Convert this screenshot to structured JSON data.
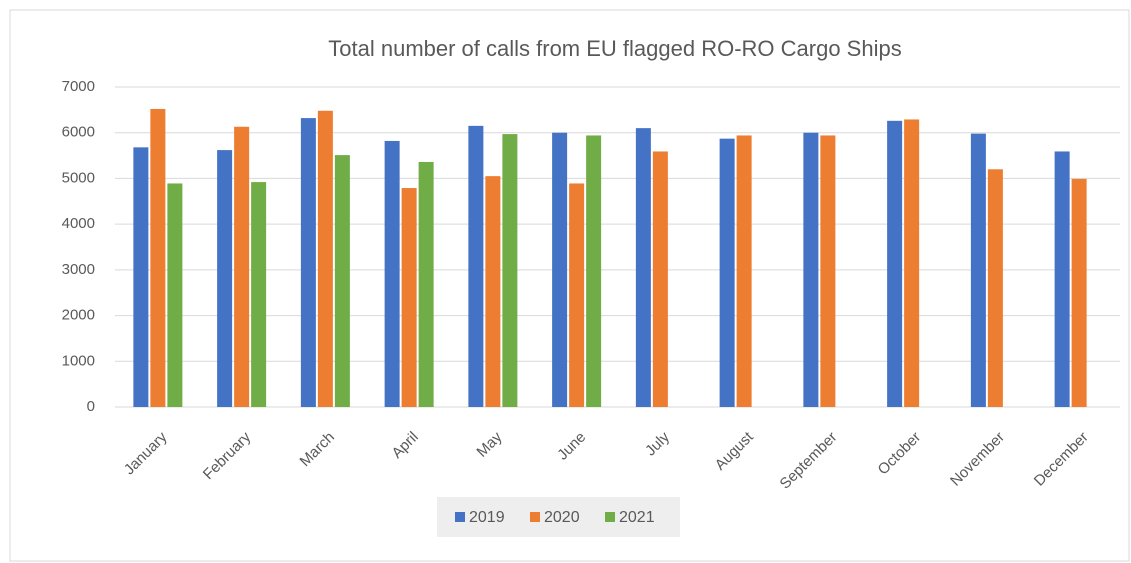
{
  "chart_data": {
    "type": "bar",
    "title": "Total number of calls from EU flagged RO-RO Cargo Ships",
    "categories": [
      "January",
      "February",
      "March",
      "April",
      "May",
      "June",
      "July",
      "August",
      "September",
      "October",
      "November",
      "December"
    ],
    "series": [
      {
        "name": "2019",
        "color": "#4472c4",
        "values": [
          5680,
          5620,
          6320,
          5820,
          6150,
          6000,
          6100,
          5870,
          6000,
          6260,
          5980,
          5590
        ]
      },
      {
        "name": "2020",
        "color": "#ed7d31",
        "values": [
          6520,
          6130,
          6480,
          4790,
          5050,
          4890,
          5590,
          5940,
          5940,
          6290,
          5200,
          4990
        ]
      },
      {
        "name": "2021",
        "color": "#70ad47",
        "values": [
          4890,
          4920,
          5510,
          5360,
          5970,
          5940,
          null,
          null,
          null,
          null,
          null,
          null
        ]
      }
    ],
    "ylim": [
      0,
      7000
    ],
    "yticks": [
      0,
      1000,
      2000,
      3000,
      4000,
      5000,
      6000,
      7000
    ],
    "grid": true,
    "legend": "bottom"
  }
}
